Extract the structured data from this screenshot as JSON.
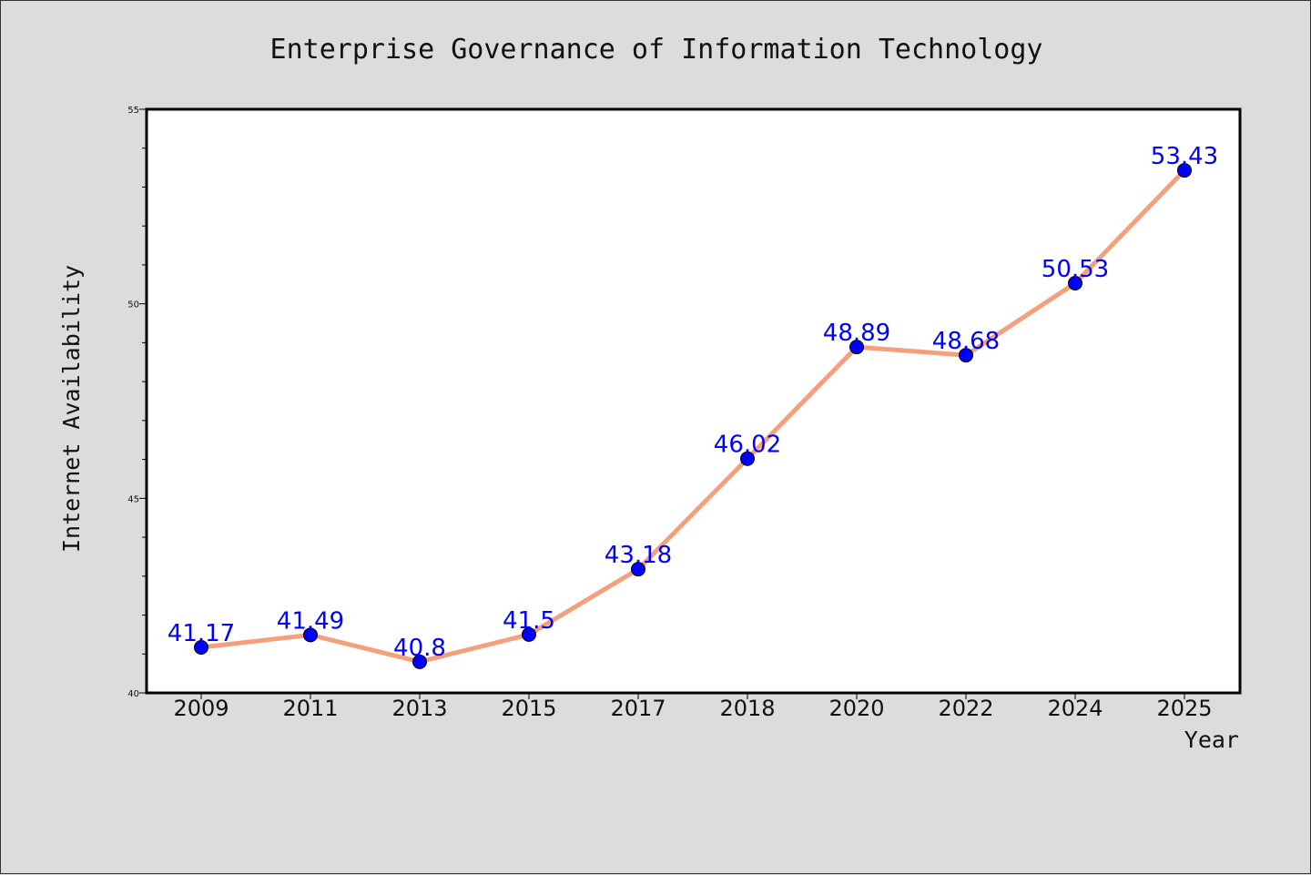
{
  "chart_data": {
    "type": "line",
    "title": "Enterprise Governance of Information Technology",
    "xlabel": "Year",
    "ylabel": "Internet Availability",
    "categories": [
      "2009",
      "2011",
      "2013",
      "2015",
      "2017",
      "2018",
      "2020",
      "2022",
      "2024",
      "2025"
    ],
    "series": [
      {
        "values": [
          41.17,
          41.49,
          40.8,
          41.5,
          43.18,
          46.02,
          48.89,
          48.68,
          50.53,
          53.43
        ],
        "data_labels": [
          "41.17",
          "41.49",
          "40.8",
          "41.5",
          "43.18",
          "46.02",
          "48.89",
          "48.68",
          "50.53",
          "53.43"
        ]
      }
    ],
    "ylim": [
      40,
      55
    ],
    "yticks": [
      "40",
      "45",
      "50",
      "55"
    ],
    "grid": false,
    "line_color": "#f4a07c",
    "marker_color": "#0000ff",
    "label_color": "#0000ff",
    "plot_background": "#ffffff",
    "page_background": "#dcdcdc"
  }
}
